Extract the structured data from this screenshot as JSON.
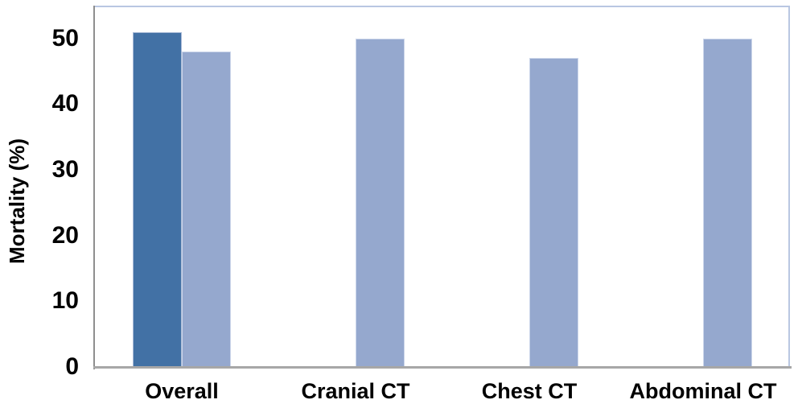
{
  "chart_data": {
    "type": "bar",
    "title": "",
    "xlabel": "",
    "ylabel": "Mortality (%)",
    "categories": [
      "Overall",
      "Cranial CT",
      "Chest CT",
      "Abdominal CT"
    ],
    "series": [
      {
        "name": "overall-dark-series",
        "color": "#4271a5",
        "edge_color": "#a9bad7",
        "values": [
          51,
          null,
          null,
          null
        ]
      },
      {
        "name": "subgroup-light-series",
        "color": "#95a8ce",
        "edge_color": "#ccd6ea",
        "values": [
          48,
          50,
          47,
          50
        ]
      }
    ],
    "yticks": [
      0,
      10,
      20,
      30,
      40,
      50
    ],
    "ylim": [
      0,
      55
    ],
    "grid": false,
    "legend_position": "none"
  },
  "colors": {
    "plot_border": "#b9c7e2",
    "y_axis_line": "#8f8f8f",
    "x_axis_line": "#a7a7a7",
    "background": "#ffffff",
    "text": "#000000"
  }
}
